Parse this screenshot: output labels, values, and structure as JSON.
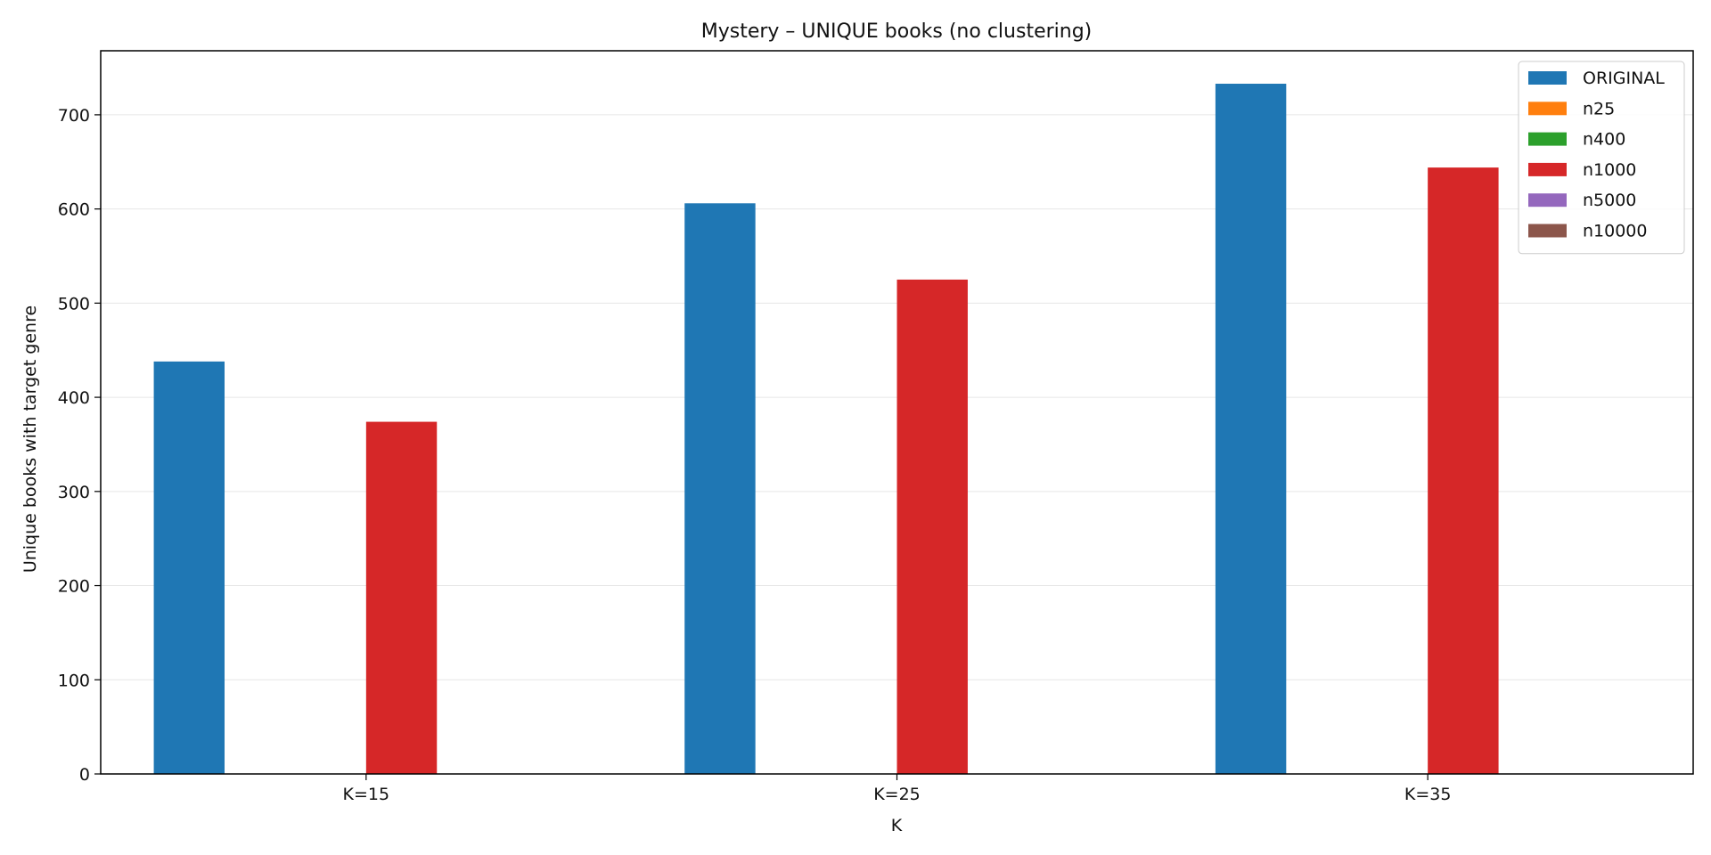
{
  "chart_data": {
    "type": "bar",
    "title": "Mystery – UNIQUE books (no clustering)",
    "xlabel": "K",
    "ylabel": "Unique books with target genre",
    "categories": [
      "K=15",
      "K=25",
      "K=35"
    ],
    "ylim": [
      0,
      768
    ],
    "yticks": [
      0,
      100,
      200,
      300,
      400,
      500,
      600,
      700
    ],
    "grid": "horizontal",
    "legend_position": "top-right",
    "series": [
      {
        "name": "ORIGINAL",
        "color": "#1f77b4",
        "values": [
          438,
          606,
          733
        ]
      },
      {
        "name": "n25",
        "color": "#ff7f0e",
        "values": [
          0,
          0,
          0
        ]
      },
      {
        "name": "n400",
        "color": "#2ca02c",
        "values": [
          0,
          0,
          0
        ]
      },
      {
        "name": "n1000",
        "color": "#d62728",
        "values": [
          374,
          525,
          644
        ]
      },
      {
        "name": "n5000",
        "color": "#9467bd",
        "values": [
          0,
          0,
          0
        ]
      },
      {
        "name": "n10000",
        "color": "#8c564b",
        "values": [
          0,
          0,
          0
        ]
      }
    ]
  }
}
